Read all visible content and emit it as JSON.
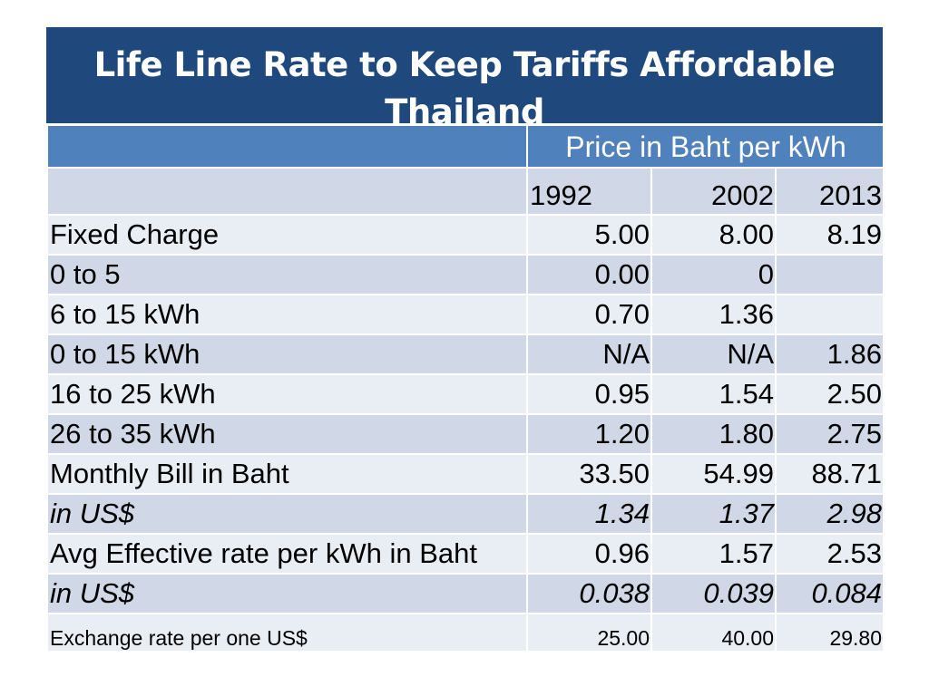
{
  "title": {
    "line1": "Life Line Rate to Keep Tariffs Affordable",
    "line2": "Thailand"
  },
  "table": {
    "header_label": "Price in Baht per kWh",
    "years": [
      "1992",
      "2002",
      "2013"
    ],
    "rows": [
      {
        "label": "Fixed Charge",
        "values": [
          "5.00",
          "8.00",
          "8.19"
        ]
      },
      {
        "label": "0 to 5",
        "values": [
          "0.00",
          "0",
          ""
        ]
      },
      {
        "label": "6 to 15 kWh",
        "values": [
          "0.70",
          "1.36",
          ""
        ]
      },
      {
        "label": "0 to 15 kWh",
        "values": [
          "N/A",
          "N/A",
          "1.86"
        ]
      },
      {
        "label": "16 to 25 kWh",
        "values": [
          "0.95",
          "1.54",
          "2.50"
        ]
      },
      {
        "label": "26 to 35 kWh",
        "values": [
          "1.20",
          "1.80",
          "2.75"
        ]
      },
      {
        "label": "Monthly Bill in Baht",
        "values": [
          "33.50",
          "54.99",
          "88.71"
        ]
      },
      {
        "label": "in US$",
        "values": [
          "1.34",
          "1.37",
          "2.98"
        ]
      },
      {
        "label": "Avg Effective rate per kWh in Baht",
        "values": [
          "0.96",
          "1.57",
          "2.53"
        ]
      },
      {
        "label": "in US$",
        "values": [
          "0.038",
          "0.039",
          "0.084"
        ]
      },
      {
        "label": "Exchange rate per one US$",
        "values": [
          "25.00",
          "40.00",
          "29.80"
        ]
      }
    ]
  },
  "colors": {
    "title_bg": "#1f497d",
    "header_bg": "#4f81bd",
    "row_dark": "#d0d8e8",
    "row_light": "#e9edf4"
  }
}
